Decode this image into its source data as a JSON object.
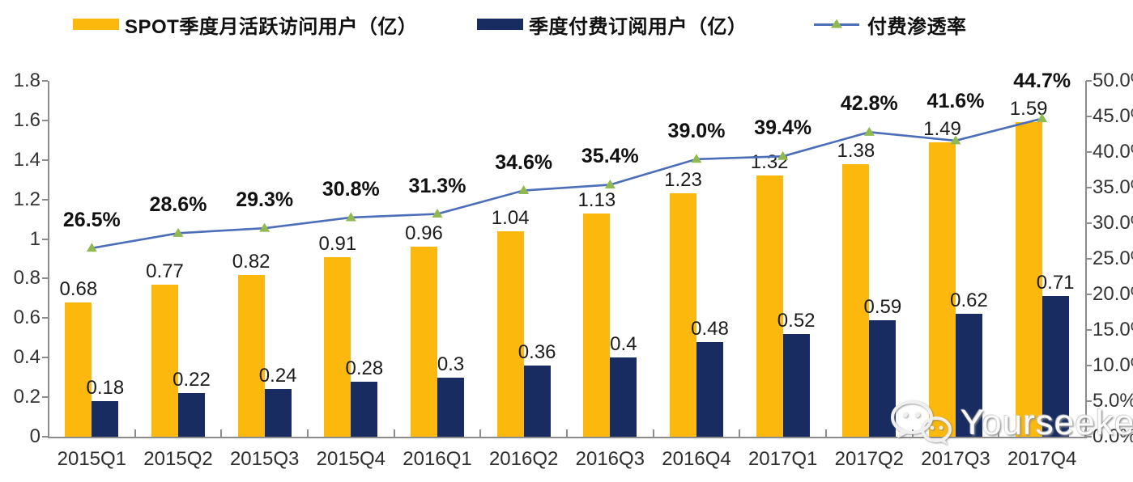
{
  "legend": {
    "items": [
      {
        "label": "SPOT季度月活跃访问用户（亿）",
        "color": "#FCB80C"
      },
      {
        "label": "季度付费订阅用户（亿）",
        "color": "#182C61"
      },
      {
        "label": "付费渗透率",
        "color": "#4C6EB8",
        "marker_color": "#90B952"
      }
    ]
  },
  "chart_data": {
    "type": "combo-bar-line",
    "categories": [
      "2015Q1",
      "2015Q2",
      "2015Q3",
      "2015Q4",
      "2016Q1",
      "2016Q2",
      "2016Q3",
      "2016Q4",
      "2017Q1",
      "2017Q2",
      "2017Q3",
      "2017Q4"
    ],
    "series": [
      {
        "name": "SPOT季度月活跃访问用户（亿）",
        "type": "bar",
        "axis": "left",
        "color": "#FCB80C",
        "values": [
          0.68,
          0.77,
          0.82,
          0.91,
          0.96,
          1.04,
          1.13,
          1.23,
          1.32,
          1.38,
          1.49,
          1.59
        ],
        "labels": [
          "0.68",
          "0.77",
          "0.82",
          "0.91",
          "0.96",
          "1.04",
          "1.13",
          "1.23",
          "1.32",
          "1.38",
          "1.49",
          "1.59"
        ]
      },
      {
        "name": "季度付费订阅用户（亿）",
        "type": "bar",
        "axis": "left",
        "color": "#182C61",
        "values": [
          0.18,
          0.22,
          0.24,
          0.28,
          0.3,
          0.36,
          0.4,
          0.48,
          0.52,
          0.59,
          0.62,
          0.71
        ],
        "labels": [
          "0.18",
          "0.22",
          "0.24",
          "0.28",
          "0.3",
          "0.36",
          "0.4",
          "0.48",
          "0.52",
          "0.59",
          "0.62",
          "0.71"
        ]
      },
      {
        "name": "付费渗透率",
        "type": "line",
        "axis": "right",
        "color": "#4C6EB8",
        "marker": "triangle",
        "marker_color": "#90B952",
        "values": [
          26.5,
          28.6,
          29.3,
          30.8,
          31.3,
          34.6,
          35.4,
          39.0,
          39.4,
          42.8,
          41.6,
          44.7
        ],
        "labels": [
          "26.5%",
          "28.6%",
          "29.3%",
          "30.8%",
          "31.3%",
          "34.6%",
          "35.4%",
          "39.0%",
          "39.4%",
          "42.8%",
          "41.6%",
          "44.7%"
        ]
      }
    ],
    "left_axis": {
      "min": 0,
      "max": 1.8,
      "step": 0.2,
      "tick_labels": [
        "0",
        "0.2",
        "0.4",
        "0.6",
        "0.8",
        "1",
        "1.2",
        "1.4",
        "1.6",
        "1.8"
      ]
    },
    "right_axis": {
      "min": 0,
      "max": 50,
      "step": 5,
      "tick_labels": [
        "0.0%",
        "5.0%",
        "10.0%",
        "15.0%",
        "20.0%",
        "25.0%",
        "30.0%",
        "35.0%",
        "40.0%",
        "45.0%",
        "50.0%"
      ]
    },
    "grid": false,
    "legend_position": "top"
  },
  "watermark": {
    "text": "Yourseeker",
    "icon": "wechat-icon"
  }
}
